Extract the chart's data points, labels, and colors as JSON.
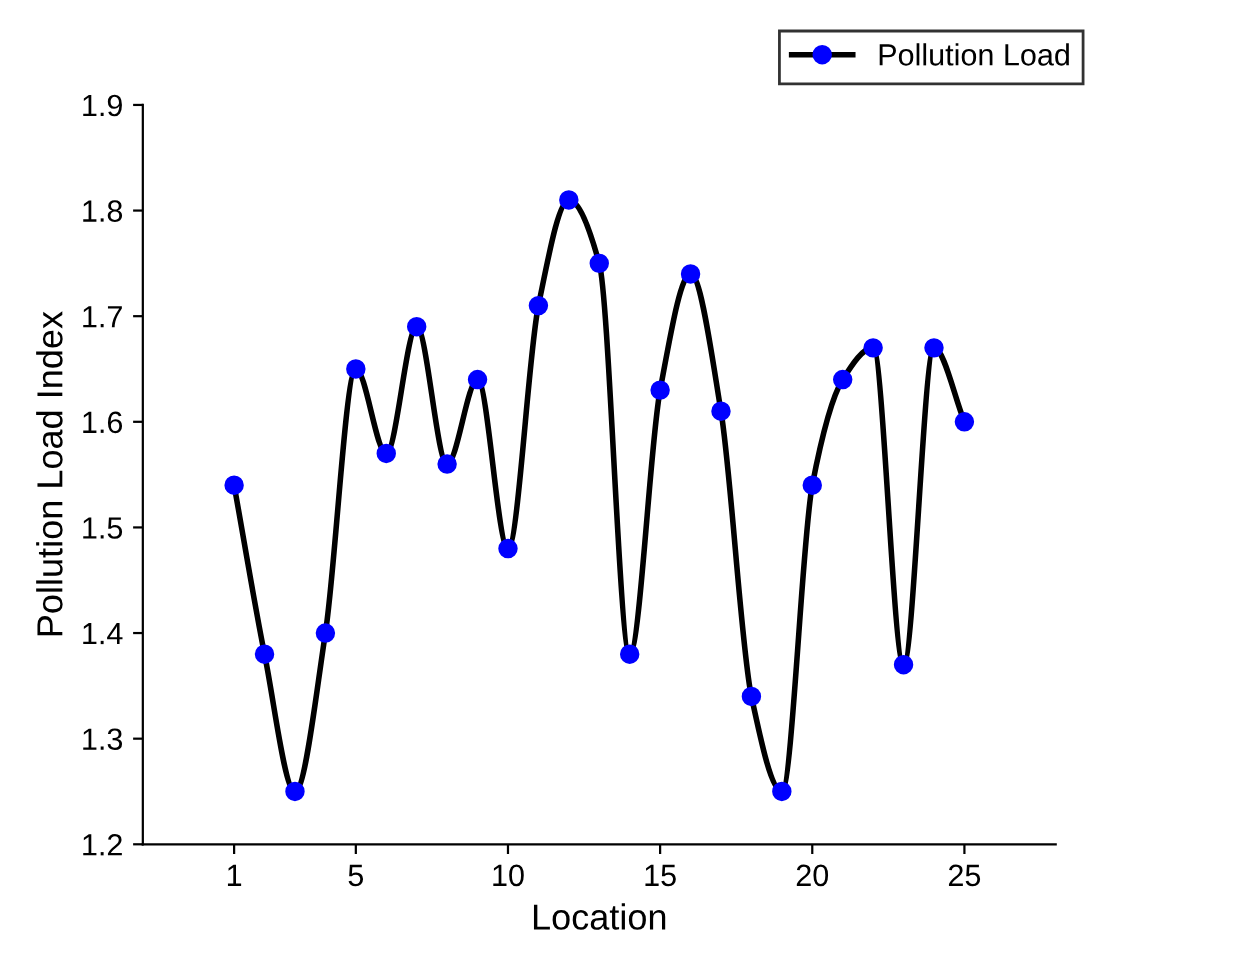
{
  "chart_data": {
    "type": "line",
    "xlabel": "Location",
    "ylabel": "Pollution Load Index",
    "x": [
      1,
      2,
      3,
      4,
      5,
      6,
      7,
      8,
      9,
      10,
      11,
      12,
      13,
      14,
      15,
      16,
      17,
      18,
      19,
      20,
      21,
      22,
      23,
      24,
      25
    ],
    "series": [
      {
        "name": "Pollution Load",
        "color": "#0000ff",
        "values": [
          1.54,
          1.38,
          1.25,
          1.4,
          1.65,
          1.57,
          1.69,
          1.56,
          1.64,
          1.48,
          1.71,
          1.81,
          1.75,
          1.38,
          1.63,
          1.74,
          1.61,
          1.34,
          1.25,
          1.54,
          1.64,
          1.67,
          1.37,
          1.67,
          1.6
        ]
      }
    ],
    "xlim": [
      -2,
      28
    ],
    "xticks": [
      1,
      5,
      10,
      15,
      20,
      25
    ],
    "ylim": [
      1.2,
      1.9
    ],
    "yticks": [
      1.2,
      1.3,
      1.4,
      1.5,
      1.6,
      1.7,
      1.8,
      1.9
    ],
    "grid": false,
    "legend": "top right",
    "marker": "circle",
    "line_style": "solid"
  }
}
